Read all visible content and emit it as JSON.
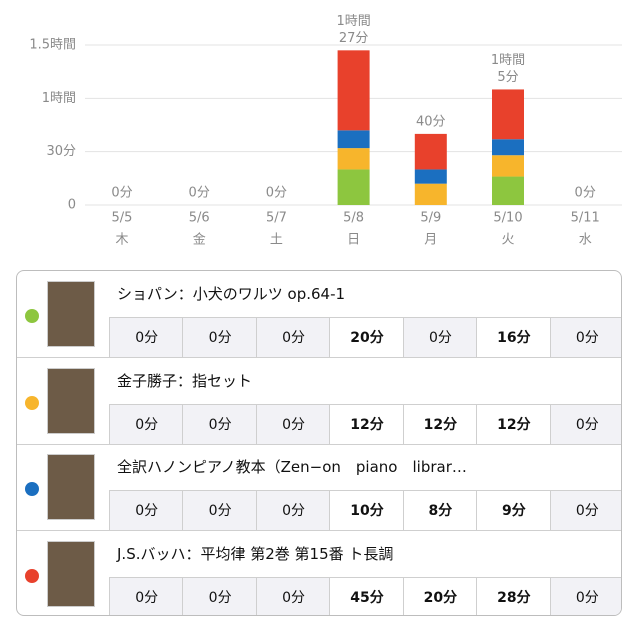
{
  "chart_data": {
    "type": "stacked_bar",
    "categories": [
      "5/5",
      "5/6",
      "5/7",
      "5/8",
      "5/9",
      "5/10",
      "5/11"
    ],
    "weekdays": [
      "木",
      "金",
      "土",
      "日",
      "月",
      "火",
      "水"
    ],
    "series": [
      {
        "name": "ショパン：小犬のワルツ op.64-1",
        "color": "#8dc63f",
        "values": [
          0,
          0,
          0,
          20,
          0,
          16,
          0
        ]
      },
      {
        "name": "金子勝子：指セット",
        "color": "#f7b52c",
        "values": [
          0,
          0,
          0,
          12,
          12,
          12,
          0
        ]
      },
      {
        "name": "全訳ハノンピアノ教本（Zen−on　piano　librar…",
        "color": "#1b6fc0",
        "values": [
          0,
          0,
          0,
          10,
          8,
          9,
          0
        ]
      },
      {
        "name": "J.S.バッハ：平均律 第2巻 第15番 ト長調",
        "color": "#e8412c",
        "values": [
          0,
          0,
          0,
          45,
          20,
          28,
          0
        ]
      }
    ],
    "total_labels": [
      [
        "0分"
      ],
      [
        "0分"
      ],
      [
        "0分"
      ],
      [
        "1時間",
        "27分"
      ],
      [
        "40分"
      ],
      [
        "1時間",
        "5分"
      ],
      [
        "0分"
      ]
    ],
    "ylim": [
      0,
      90
    ],
    "yticks": [
      0,
      {
        "value": 30,
        "label": "30分"
      },
      {
        "value": 60,
        "label": "1時間"
      },
      {
        "value": 90,
        "label": "1.5時間"
      }
    ],
    "grid": true
  },
  "table": {
    "rows": [
      [
        "0分",
        "0分",
        "0分",
        "20分",
        "0分",
        "16分",
        "0分"
      ],
      [
        "0分",
        "0分",
        "0分",
        "12分",
        "12分",
        "12分",
        "0分"
      ],
      [
        "0分",
        "0分",
        "0分",
        "10分",
        "8分",
        "9分",
        "0分"
      ],
      [
        "0分",
        "0分",
        "0分",
        "45分",
        "20分",
        "28分",
        "0分"
      ]
    ]
  }
}
